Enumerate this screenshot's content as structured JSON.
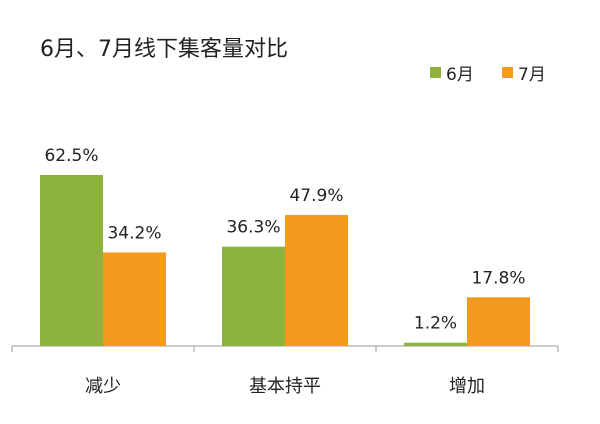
{
  "chart_data": {
    "type": "bar",
    "title": "6月、7月线下集客量对比",
    "categories": [
      "减少",
      "基本持平",
      "增加"
    ],
    "series": [
      {
        "name": "6月",
        "values": [
          62.5,
          36.3,
          1.2
        ],
        "color": "#8db33c"
      },
      {
        "name": "7月",
        "values": [
          34.2,
          47.9,
          17.8
        ],
        "color": "#f29b1d"
      }
    ],
    "value_format": "%",
    "xlabel": "",
    "ylabel": "",
    "ylim": [
      0,
      62.5
    ],
    "grid": false,
    "legend_position": "top-right"
  }
}
